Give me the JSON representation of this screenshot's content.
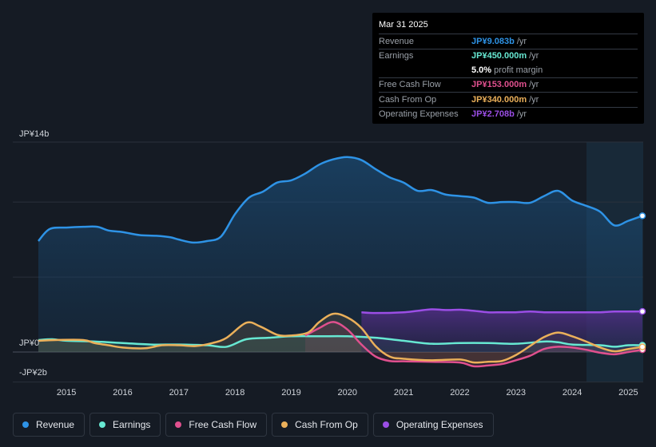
{
  "chart_data": {
    "type": "area",
    "y_unit_labels": {
      "top": "JP¥14b",
      "zero": "JP¥0",
      "bottom": "-JP¥2b"
    },
    "ylim": [
      -2,
      14
    ],
    "xlim": [
      2014.5,
      2025.25
    ],
    "x_ticks": [
      2015,
      2016,
      2017,
      2018,
      2019,
      2020,
      2021,
      2022,
      2023,
      2024,
      2025
    ],
    "x_tick_labels": [
      "2015",
      "2016",
      "2017",
      "2018",
      "2019",
      "2020",
      "2021",
      "2022",
      "2023",
      "2024",
      "2025"
    ],
    "series": [
      {
        "name": "Revenue",
        "color": "#2e93e6",
        "points": [
          [
            2014.5,
            7.4
          ],
          [
            2014.7,
            8.2
          ],
          [
            2015.0,
            8.3
          ],
          [
            2015.3,
            8.35
          ],
          [
            2015.55,
            8.35
          ],
          [
            2015.75,
            8.1
          ],
          [
            2016.0,
            8.0
          ],
          [
            2016.3,
            7.8
          ],
          [
            2016.6,
            7.75
          ],
          [
            2016.85,
            7.65
          ],
          [
            2017.0,
            7.5
          ],
          [
            2017.25,
            7.3
          ],
          [
            2017.5,
            7.4
          ],
          [
            2017.75,
            7.7
          ],
          [
            2018.0,
            9.2
          ],
          [
            2018.25,
            10.3
          ],
          [
            2018.5,
            10.7
          ],
          [
            2018.75,
            11.3
          ],
          [
            2019.0,
            11.45
          ],
          [
            2019.25,
            11.9
          ],
          [
            2019.5,
            12.5
          ],
          [
            2019.75,
            12.85
          ],
          [
            2020.0,
            13.0
          ],
          [
            2020.25,
            12.8
          ],
          [
            2020.5,
            12.2
          ],
          [
            2020.75,
            11.65
          ],
          [
            2021.0,
            11.3
          ],
          [
            2021.25,
            10.75
          ],
          [
            2021.5,
            10.8
          ],
          [
            2021.75,
            10.5
          ],
          [
            2022.0,
            10.4
          ],
          [
            2022.25,
            10.3
          ],
          [
            2022.5,
            9.95
          ],
          [
            2022.75,
            10.0
          ],
          [
            2023.0,
            10.0
          ],
          [
            2023.25,
            9.95
          ],
          [
            2023.5,
            10.4
          ],
          [
            2023.75,
            10.75
          ],
          [
            2024.0,
            10.1
          ],
          [
            2024.25,
            9.75
          ],
          [
            2024.5,
            9.35
          ],
          [
            2024.75,
            8.45
          ],
          [
            2025.0,
            8.75
          ],
          [
            2025.25,
            9.083
          ]
        ]
      },
      {
        "name": "Earnings",
        "color": "#67e8d2",
        "points": [
          [
            2014.5,
            0.8
          ],
          [
            2014.75,
            0.85
          ],
          [
            2015.0,
            0.75
          ],
          [
            2015.5,
            0.7
          ],
          [
            2016.0,
            0.6
          ],
          [
            2016.5,
            0.5
          ],
          [
            2017.0,
            0.5
          ],
          [
            2017.5,
            0.45
          ],
          [
            2017.85,
            0.35
          ],
          [
            2018.2,
            0.85
          ],
          [
            2018.6,
            0.95
          ],
          [
            2019.0,
            1.05
          ],
          [
            2019.5,
            1.05
          ],
          [
            2020.0,
            1.05
          ],
          [
            2020.5,
            0.95
          ],
          [
            2021.0,
            0.75
          ],
          [
            2021.5,
            0.55
          ],
          [
            2022.0,
            0.6
          ],
          [
            2022.5,
            0.6
          ],
          [
            2023.0,
            0.55
          ],
          [
            2023.5,
            0.7
          ],
          [
            2023.75,
            0.65
          ],
          [
            2024.0,
            0.5
          ],
          [
            2024.5,
            0.45
          ],
          [
            2024.75,
            0.35
          ],
          [
            2025.0,
            0.45
          ],
          [
            2025.25,
            0.45
          ]
        ]
      },
      {
        "name": "Free Cash Flow",
        "color": "#e0508e",
        "points": [
          [
            2019.25,
            1.1
          ],
          [
            2019.5,
            1.6
          ],
          [
            2019.75,
            2.0
          ],
          [
            2020.0,
            1.5
          ],
          [
            2020.25,
            0.5
          ],
          [
            2020.5,
            -0.3
          ],
          [
            2020.75,
            -0.6
          ],
          [
            2021.0,
            -0.62
          ],
          [
            2021.5,
            -0.65
          ],
          [
            2022.0,
            -0.7
          ],
          [
            2022.25,
            -0.95
          ],
          [
            2022.5,
            -0.9
          ],
          [
            2022.75,
            -0.8
          ],
          [
            2023.0,
            -0.55
          ],
          [
            2023.25,
            -0.25
          ],
          [
            2023.5,
            0.2
          ],
          [
            2023.75,
            0.35
          ],
          [
            2024.0,
            0.3
          ],
          [
            2024.25,
            0.15
          ],
          [
            2024.5,
            -0.05
          ],
          [
            2024.75,
            -0.15
          ],
          [
            2025.0,
            0.0
          ],
          [
            2025.25,
            0.153
          ]
        ]
      },
      {
        "name": "Cash From Op",
        "color": "#ebb05a",
        "points": [
          [
            2014.5,
            0.75
          ],
          [
            2014.8,
            0.8
          ],
          [
            2015.3,
            0.8
          ],
          [
            2015.5,
            0.6
          ],
          [
            2015.75,
            0.45
          ],
          [
            2016.0,
            0.3
          ],
          [
            2016.4,
            0.25
          ],
          [
            2016.7,
            0.45
          ],
          [
            2017.0,
            0.45
          ],
          [
            2017.3,
            0.4
          ],
          [
            2017.6,
            0.6
          ],
          [
            2017.85,
            0.95
          ],
          [
            2018.2,
            1.95
          ],
          [
            2018.45,
            1.7
          ],
          [
            2018.75,
            1.15
          ],
          [
            2019.0,
            1.1
          ],
          [
            2019.3,
            1.3
          ],
          [
            2019.5,
            2.0
          ],
          [
            2019.75,
            2.55
          ],
          [
            2020.0,
            2.3
          ],
          [
            2020.25,
            1.6
          ],
          [
            2020.5,
            0.4
          ],
          [
            2020.75,
            -0.3
          ],
          [
            2021.0,
            -0.45
          ],
          [
            2021.5,
            -0.55
          ],
          [
            2022.0,
            -0.5
          ],
          [
            2022.25,
            -0.7
          ],
          [
            2022.5,
            -0.65
          ],
          [
            2022.75,
            -0.6
          ],
          [
            2023.0,
            -0.2
          ],
          [
            2023.25,
            0.4
          ],
          [
            2023.5,
            1.0
          ],
          [
            2023.75,
            1.3
          ],
          [
            2024.0,
            1.05
          ],
          [
            2024.25,
            0.7
          ],
          [
            2024.5,
            0.3
          ],
          [
            2024.75,
            0.05
          ],
          [
            2025.0,
            0.2
          ],
          [
            2025.25,
            0.34
          ]
        ]
      },
      {
        "name": "Operating Expenses",
        "color": "#9b4ee5",
        "points": [
          [
            2020.25,
            2.65
          ],
          [
            2020.5,
            2.6
          ],
          [
            2021.0,
            2.65
          ],
          [
            2021.25,
            2.75
          ],
          [
            2021.5,
            2.85
          ],
          [
            2021.75,
            2.8
          ],
          [
            2022.0,
            2.82
          ],
          [
            2022.25,
            2.75
          ],
          [
            2022.5,
            2.65
          ],
          [
            2022.75,
            2.65
          ],
          [
            2023.0,
            2.65
          ],
          [
            2023.25,
            2.7
          ],
          [
            2023.5,
            2.65
          ],
          [
            2023.75,
            2.65
          ],
          [
            2024.0,
            2.65
          ],
          [
            2024.25,
            2.65
          ],
          [
            2024.5,
            2.65
          ],
          [
            2024.75,
            2.7
          ],
          [
            2025.0,
            2.7
          ],
          [
            2025.25,
            2.708
          ]
        ]
      }
    ]
  },
  "tooltip": {
    "date": "Mar 31 2025",
    "rows": [
      {
        "label": "Revenue",
        "value": "JP¥9.083b",
        "unit": "/yr",
        "color": "#2e93e6"
      },
      {
        "label": "Earnings",
        "value": "JP¥450.000m",
        "unit": "/yr",
        "color": "#67e8d2"
      },
      {
        "label": "",
        "value": "5.0%",
        "unit": "profit margin",
        "color": "#ffffff"
      },
      {
        "label": "Free Cash Flow",
        "value": "JP¥153.000m",
        "unit": "/yr",
        "color": "#e0508e"
      },
      {
        "label": "Cash From Op",
        "value": "JP¥340.000m",
        "unit": "/yr",
        "color": "#ebb05a"
      },
      {
        "label": "Operating Expenses",
        "value": "JP¥2.708b",
        "unit": "/yr",
        "color": "#9b4ee5"
      }
    ]
  },
  "legend": [
    {
      "label": "Revenue",
      "color": "#2e93e6"
    },
    {
      "label": "Earnings",
      "color": "#67e8d2"
    },
    {
      "label": "Free Cash Flow",
      "color": "#e0508e"
    },
    {
      "label": "Cash From Op",
      "color": "#ebb05a"
    },
    {
      "label": "Operating Expenses",
      "color": "#9b4ee5"
    }
  ]
}
